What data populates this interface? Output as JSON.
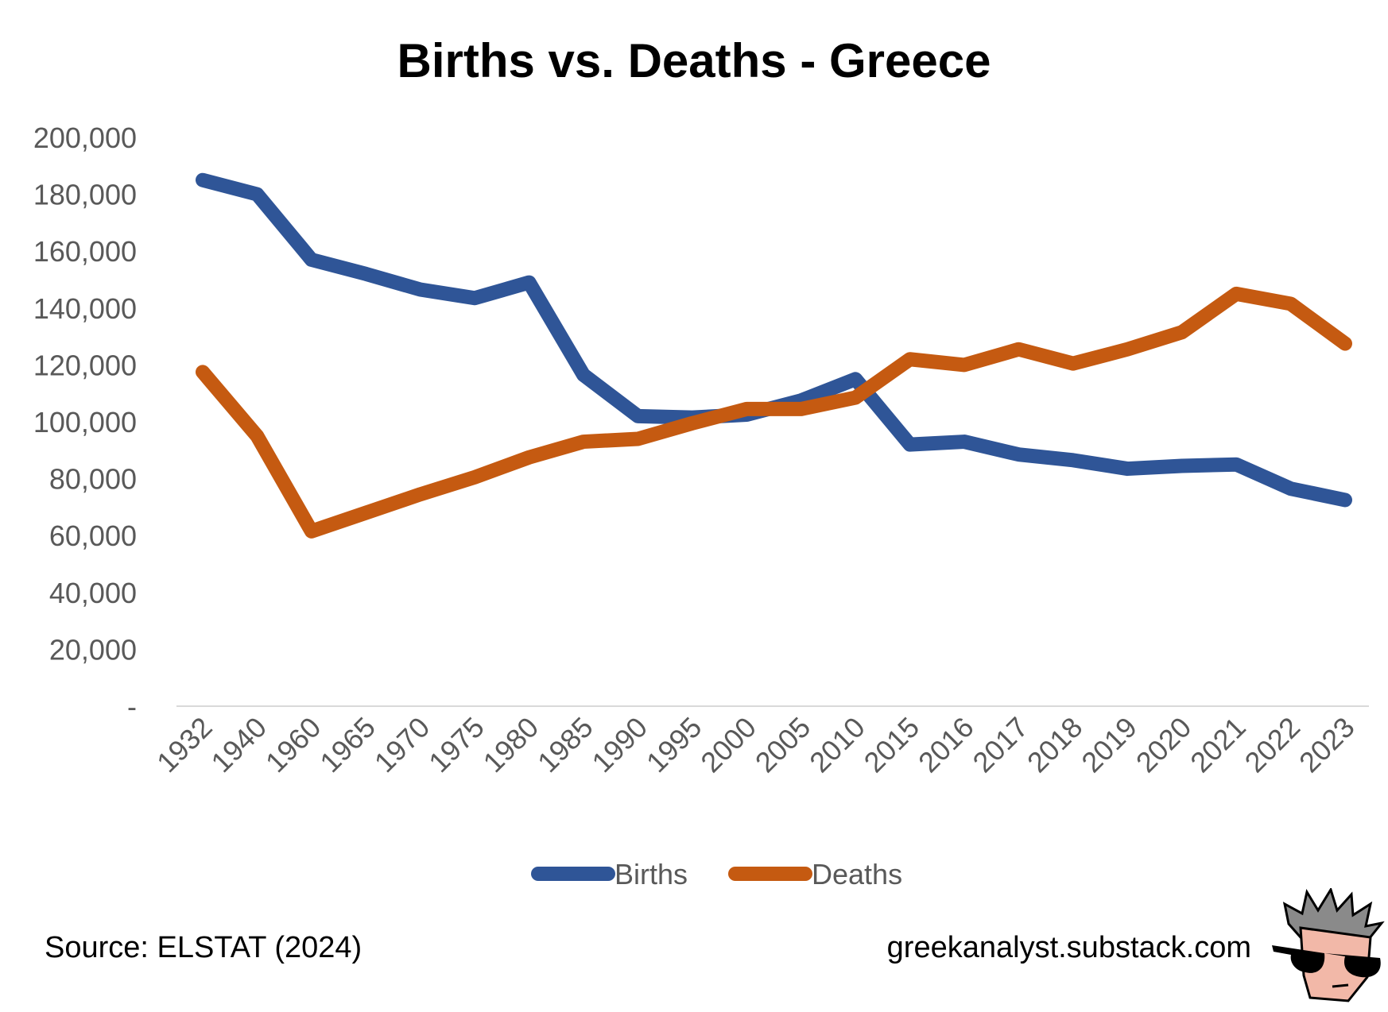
{
  "chart_data": {
    "type": "line",
    "title": "Births vs. Deaths - Greece",
    "xlabel": "",
    "ylabel": "",
    "categories": [
      "1932",
      "1940",
      "1960",
      "1965",
      "1970",
      "1975",
      "1980",
      "1985",
      "1990",
      "1995",
      "2000",
      "2005",
      "2010",
      "2015",
      "2016",
      "2017",
      "2018",
      "2019",
      "2020",
      "2021",
      "2022",
      "2023"
    ],
    "ylim": [
      0,
      200000
    ],
    "y_ticks": [
      0,
      20000,
      40000,
      60000,
      80000,
      100000,
      120000,
      140000,
      160000,
      180000,
      200000
    ],
    "y_tick_labels": [
      "-",
      "20,000",
      "40,000",
      "60,000",
      "80,000",
      "100,000",
      "120,000",
      "140,000",
      "160,000",
      "180,000",
      "200,000"
    ],
    "grid": false,
    "legend_position": "bottom",
    "series": [
      {
        "name": "Births",
        "color": "#2f5597",
        "values": [
          185000,
          180000,
          157000,
          152000,
          146500,
          143500,
          149000,
          116500,
          102000,
          101500,
          102500,
          107500,
          115000,
          92000,
          93000,
          88500,
          86500,
          83500,
          84500,
          85000,
          76500,
          72500
        ]
      },
      {
        "name": "Deaths",
        "color": "#c55a11",
        "values": [
          117500,
          95000,
          61500,
          68000,
          74500,
          80500,
          87500,
          93000,
          94000,
          99500,
          104500,
          104500,
          108500,
          122000,
          120000,
          125500,
          120500,
          125500,
          131500,
          145000,
          141500,
          127500
        ]
      }
    ]
  },
  "footer": {
    "source": "Source: ELSTAT (2024)",
    "site": "greekanalyst.substack.com"
  },
  "mascot": {
    "icon": "mascot-sunglasses-icon"
  }
}
